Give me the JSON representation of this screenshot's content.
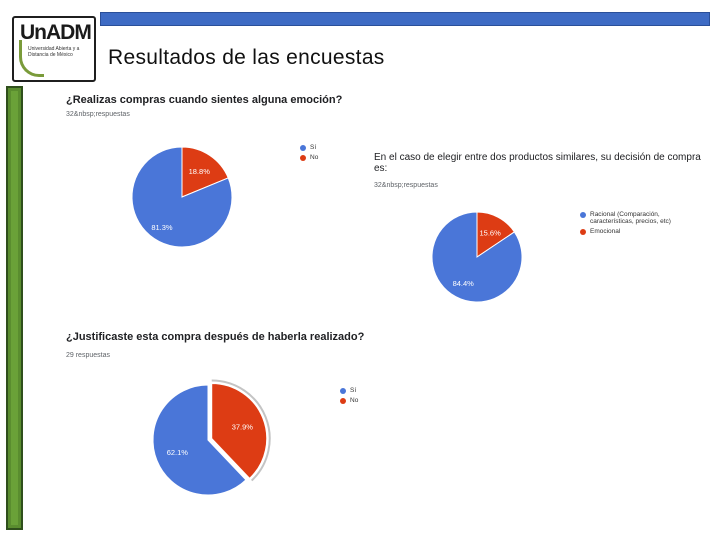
{
  "header": {
    "logo_text": "UnADM",
    "logo_subtitle": "Universidad Abierta y a Distancia de México",
    "title": "Resultados de las encuestas"
  },
  "colors": {
    "blue": "#4a76d8",
    "red": "#dd3c14",
    "green_bar": "#5a8d2f",
    "top_bar": "#3e6bc4"
  },
  "chart_data": [
    {
      "type": "pie",
      "title": "¿Realizas compras cuando sientes alguna emoción?",
      "subtitle": "32&nbsp;respuestas",
      "categories": [
        "Sí",
        "No"
      ],
      "values": [
        81.3,
        18.8
      ],
      "labels": [
        "81.3%",
        "18.8%"
      ],
      "legend": "right"
    },
    {
      "type": "pie",
      "title": "En el caso de elegir entre dos productos similares, su decisión de compra es:",
      "subtitle": "32&nbsp;respuestas",
      "categories": [
        "Racional (Comparación, características, precios, etc)",
        "Emocional"
      ],
      "values": [
        84.4,
        15.6
      ],
      "labels": [
        "84.4%",
        "15.6%"
      ],
      "legend": "right"
    },
    {
      "type": "pie",
      "title": "¿Justificaste esta compra después de haberla realizado?",
      "subtitle": "29 respuestas",
      "categories": [
        "Sí",
        "No"
      ],
      "values": [
        62.1,
        37.9
      ],
      "labels": [
        "62.1%",
        "37.9%"
      ],
      "legend": "right"
    }
  ]
}
